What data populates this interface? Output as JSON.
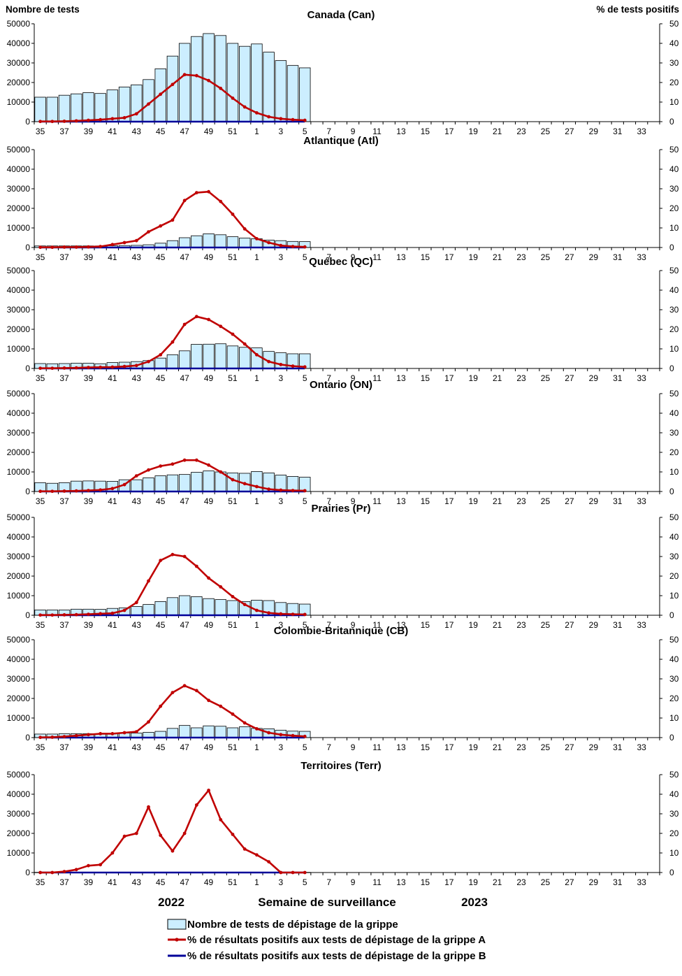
{
  "left_axis_title": "Nombre de tests",
  "right_axis_title": "% de tests positifs",
  "xlabel": "Semaine de surveillance",
  "year_labels": [
    "2022",
    "2023"
  ],
  "left_ticks": [
    "0",
    "10000",
    "20000",
    "30000",
    "40000",
    "50000"
  ],
  "right_ticks": [
    "0",
    "10",
    "20",
    "30",
    "40",
    "50"
  ],
  "week_labels": [
    "35",
    "37",
    "39",
    "41",
    "43",
    "45",
    "47",
    "49",
    "51",
    "1",
    "3",
    "5",
    "7",
    "9",
    "11",
    "13",
    "15",
    "17",
    "19",
    "21",
    "23",
    "25",
    "27",
    "29",
    "31",
    "33"
  ],
  "legend": [
    {
      "label": "Nombre de tests de dépistage de la grippe",
      "kind": "bar"
    },
    {
      "label": "% de résultats positifs aux tests de dépistage de la grippe A",
      "kind": "line",
      "color": "#c00000"
    },
    {
      "label": "% de résultats positifs aux tests de dépistage de la grippe B",
      "kind": "line",
      "color": "#000099"
    }
  ],
  "colors": {
    "bar_fill": "#cceeff",
    "bar_stroke": "#000000",
    "flu_a": "#c00000",
    "flu_b": "#000099",
    "marker": "#c00000"
  },
  "chart_data": [
    {
      "type": "bar+line",
      "title": "Canada (Can)",
      "weeks": [
        "35",
        "36",
        "37",
        "38",
        "39",
        "40",
        "41",
        "42",
        "43",
        "44",
        "45",
        "46",
        "47",
        "48",
        "49",
        "50",
        "51",
        "52",
        "1",
        "2",
        "3",
        "4",
        "5"
      ],
      "tests": [
        12500,
        12500,
        13500,
        14200,
        14800,
        14400,
        16200,
        17700,
        18800,
        21500,
        27000,
        33500,
        40000,
        43500,
        45000,
        44000,
        40000,
        38500,
        39700,
        35500,
        31200,
        28700,
        27500
      ],
      "pct_a": [
        0.1,
        0.1,
        0.2,
        0.4,
        0.7,
        1.0,
        1.5,
        2.0,
        4.0,
        9.0,
        14.0,
        19.0,
        24.0,
        23.5,
        21.0,
        17.0,
        12.0,
        7.5,
        4.5,
        2.5,
        1.5,
        1.0,
        0.7
      ],
      "pct_b": [
        0,
        0,
        0,
        0,
        0,
        0,
        0,
        0,
        0,
        0,
        0,
        0,
        0,
        0,
        0,
        0,
        0,
        0,
        0,
        0,
        0,
        0,
        0
      ],
      "ylim_left": [
        0,
        50000
      ],
      "ylim_right": [
        0,
        50
      ]
    },
    {
      "type": "bar+line",
      "title": "Atlantique (Atl)",
      "weeks": [
        "35",
        "36",
        "37",
        "38",
        "39",
        "40",
        "41",
        "42",
        "43",
        "44",
        "45",
        "46",
        "47",
        "48",
        "49",
        "50",
        "51",
        "52",
        "1",
        "2",
        "3",
        "4",
        "5"
      ],
      "tests": [
        800,
        800,
        800,
        800,
        800,
        800,
        900,
        1000,
        1100,
        1400,
        2200,
        3500,
        5000,
        6000,
        7000,
        6500,
        5500,
        4800,
        4500,
        3800,
        3500,
        3100,
        3000
      ],
      "pct_a": [
        0.1,
        0.1,
        0.2,
        0.2,
        0.3,
        0.5,
        1.5,
        2.5,
        3.5,
        8.0,
        11.0,
        14.0,
        24.0,
        28.0,
        28.5,
        23.5,
        17.0,
        9.5,
        4.5,
        2.5,
        1.0,
        0.5,
        0.3
      ],
      "pct_b": [
        0,
        0,
        0,
        0,
        0,
        0,
        0,
        0,
        0,
        0,
        0,
        0,
        0,
        0,
        0,
        0,
        0,
        0,
        0,
        0,
        0,
        0,
        0
      ],
      "ylim_left": [
        0,
        50000
      ],
      "ylim_right": [
        0,
        50
      ]
    },
    {
      "type": "bar+line",
      "title": "Québec (QC)",
      "weeks": [
        "35",
        "36",
        "37",
        "38",
        "39",
        "40",
        "41",
        "42",
        "43",
        "44",
        "45",
        "46",
        "47",
        "48",
        "49",
        "50",
        "51",
        "52",
        "1",
        "2",
        "3",
        "4",
        "5"
      ],
      "tests": [
        2500,
        2400,
        2500,
        2700,
        2700,
        2400,
        3000,
        3200,
        3500,
        4000,
        5300,
        7000,
        9000,
        12300,
        12400,
        12600,
        11500,
        10800,
        10500,
        8700,
        8000,
        7500,
        7500
      ],
      "pct_a": [
        0.1,
        0.1,
        0.2,
        0.3,
        0.5,
        0.6,
        0.7,
        1.0,
        1.5,
        3.5,
        7.0,
        13.5,
        22.5,
        26.5,
        25.0,
        21.5,
        17.5,
        12.5,
        7.0,
        3.5,
        2.0,
        1.2,
        0.8
      ],
      "pct_b": [
        0,
        0,
        0,
        0,
        0,
        0,
        0,
        0,
        0,
        0,
        0,
        0,
        0,
        0,
        0,
        0,
        0,
        0,
        0,
        0,
        0,
        0,
        0
      ],
      "ylim_left": [
        0,
        50000
      ],
      "ylim_right": [
        0,
        50
      ]
    },
    {
      "type": "bar+line",
      "title": "Ontario (ON)",
      "weeks": [
        "35",
        "36",
        "37",
        "38",
        "39",
        "40",
        "41",
        "42",
        "43",
        "44",
        "45",
        "46",
        "47",
        "48",
        "49",
        "50",
        "51",
        "52",
        "1",
        "2",
        "3",
        "4",
        "5"
      ],
      "tests": [
        4500,
        4200,
        4500,
        5300,
        5400,
        5300,
        5200,
        6000,
        6000,
        7000,
        8000,
        8500,
        8700,
        9800,
        10500,
        10000,
        9500,
        9300,
        10200,
        9500,
        8400,
        7700,
        7300
      ],
      "pct_a": [
        0.1,
        0.1,
        0.2,
        0.3,
        0.5,
        0.8,
        1.5,
        3.5,
        8.0,
        11.0,
        13.0,
        14.0,
        16.0,
        16.0,
        13.5,
        10.0,
        6.0,
        4.0,
        2.5,
        1.2,
        0.7,
        0.5,
        0.4
      ],
      "pct_b": [
        0,
        0,
        0,
        0,
        0,
        0,
        0,
        0,
        0,
        0,
        0,
        0,
        0,
        0,
        0,
        0,
        0,
        0,
        0,
        0,
        0,
        0,
        0
      ],
      "ylim_left": [
        0,
        50000
      ],
      "ylim_right": [
        0,
        50
      ]
    },
    {
      "type": "bar+line",
      "title": "Prairies (Pr)",
      "weeks": [
        "35",
        "36",
        "37",
        "38",
        "39",
        "40",
        "41",
        "42",
        "43",
        "44",
        "45",
        "46",
        "47",
        "48",
        "49",
        "50",
        "51",
        "52",
        "1",
        "2",
        "3",
        "4",
        "5"
      ],
      "tests": [
        2700,
        2700,
        2700,
        3100,
        3100,
        3000,
        3500,
        3800,
        4500,
        5500,
        7000,
        9000,
        10000,
        9500,
        8500,
        8000,
        7500,
        7000,
        7700,
        7500,
        6500,
        6000,
        5700
      ],
      "pct_a": [
        0.1,
        0.1,
        0.2,
        0.3,
        0.5,
        0.8,
        1.0,
        2.5,
        6.5,
        17.5,
        28.0,
        31.0,
        30.0,
        25.0,
        19.0,
        14.5,
        9.5,
        5.5,
        2.5,
        1.2,
        0.7,
        0.5,
        0.4
      ],
      "pct_b": [
        0,
        0,
        0,
        0,
        0,
        0,
        0,
        0,
        0,
        0,
        0,
        0,
        0,
        0,
        0,
        0,
        0,
        0,
        0,
        0,
        0,
        0,
        0
      ],
      "ylim_left": [
        0,
        50000
      ],
      "ylim_right": [
        0,
        50
      ]
    },
    {
      "type": "bar+line",
      "title": "Colombie-Britannique (CB)",
      "weeks": [
        "35",
        "36",
        "37",
        "38",
        "39",
        "40",
        "41",
        "42",
        "43",
        "44",
        "45",
        "46",
        "47",
        "48",
        "49",
        "50",
        "51",
        "52",
        "1",
        "2",
        "3",
        "4",
        "5"
      ],
      "tests": [
        1800,
        1800,
        2000,
        2000,
        2000,
        1800,
        2100,
        2300,
        2300,
        2700,
        3200,
        4700,
        6200,
        5000,
        6000,
        5800,
        5000,
        5500,
        4700,
        4500,
        3800,
        3300,
        3200
      ],
      "pct_a": [
        0.1,
        0.2,
        0.5,
        1.0,
        1.5,
        2.0,
        2.0,
        2.5,
        3.0,
        8.0,
        16.0,
        23.0,
        26.5,
        24.0,
        19.0,
        16.0,
        12.0,
        7.5,
        4.5,
        2.5,
        1.5,
        1.0,
        0.6
      ],
      "pct_b": [
        0,
        0,
        0,
        0,
        0,
        0,
        0,
        0,
        0,
        0,
        0,
        0,
        0,
        0,
        0,
        0,
        0,
        0,
        0,
        0,
        0,
        0,
        0
      ],
      "ylim_left": [
        0,
        50000
      ],
      "ylim_right": [
        0,
        50
      ]
    },
    {
      "type": "bar+line",
      "title": "Territoires (Terr)",
      "weeks": [
        "35",
        "36",
        "37",
        "38",
        "39",
        "40",
        "41",
        "42",
        "43",
        "44",
        "45",
        "46",
        "47",
        "48",
        "49",
        "50",
        "51",
        "52",
        "1",
        "2",
        "3",
        "4",
        "5"
      ],
      "tests": [
        100,
        100,
        100,
        100,
        100,
        100,
        100,
        100,
        100,
        100,
        100,
        100,
        100,
        100,
        100,
        100,
        100,
        100,
        100,
        100,
        100,
        100,
        100
      ],
      "pct_a": [
        0.0,
        0.0,
        0.5,
        1.5,
        3.5,
        4.0,
        10.0,
        18.5,
        20.0,
        33.5,
        19.0,
        11.0,
        20.0,
        34.5,
        42.0,
        27.0,
        19.5,
        12.0,
        9.0,
        5.5,
        0.0,
        0.0,
        0.0
      ],
      "pct_b": [
        0,
        0,
        0,
        0,
        0,
        0,
        0,
        0,
        0,
        0,
        0,
        0,
        0,
        0,
        0,
        0,
        0,
        0,
        0,
        0,
        0,
        0,
        0
      ],
      "ylim_left": [
        0,
        50000
      ],
      "ylim_right": [
        0,
        50
      ]
    }
  ]
}
